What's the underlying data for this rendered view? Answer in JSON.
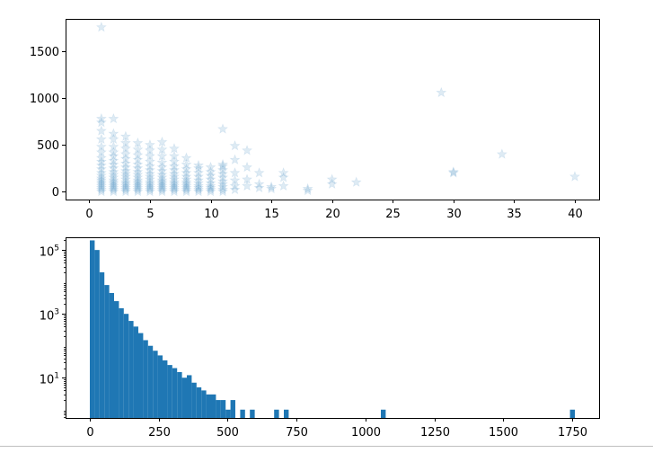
{
  "chart_data": [
    {
      "type": "scatter",
      "title": "",
      "xlabel": "",
      "ylabel": "",
      "xlim": [
        -1.95,
        42.0
      ],
      "ylim": [
        -85,
        1850
      ],
      "xticks": [
        0,
        5,
        10,
        15,
        20,
        25,
        30,
        35,
        40
      ],
      "yticks": [
        0,
        500,
        1000,
        1500
      ],
      "xtick_labels": [
        "0",
        "5",
        "10",
        "15",
        "20",
        "25",
        "30",
        "35",
        "40"
      ],
      "ytick_labels": [
        "0",
        "500",
        "1000",
        "1500"
      ],
      "marker": "star",
      "color": "#1f77b4",
      "alpha": 0.15,
      "grid": false,
      "series": [
        {
          "points": [
            [
              1,
              1760
            ],
            [
              1,
              780
            ],
            [
              1,
              740
            ],
            [
              1,
              650
            ],
            [
              1,
              560
            ],
            [
              1,
              480
            ],
            [
              1,
              420
            ],
            [
              1,
              360
            ],
            [
              1,
              320
            ],
            [
              1,
              280
            ],
            [
              1,
              240
            ],
            [
              1,
              200
            ],
            [
              1,
              170
            ],
            [
              1,
              140
            ],
            [
              1,
              120
            ],
            [
              1,
              100
            ],
            [
              1,
              80
            ],
            [
              1,
              60
            ],
            [
              1,
              40
            ],
            [
              1,
              20
            ],
            [
              1,
              0
            ],
            [
              2,
              780
            ],
            [
              2,
              620
            ],
            [
              2,
              560
            ],
            [
              2,
              480
            ],
            [
              2,
              420
            ],
            [
              2,
              380
            ],
            [
              2,
              330
            ],
            [
              2,
              290
            ],
            [
              2,
              250
            ],
            [
              2,
              210
            ],
            [
              2,
              180
            ],
            [
              2,
              150
            ],
            [
              2,
              120
            ],
            [
              2,
              100
            ],
            [
              2,
              80
            ],
            [
              2,
              60
            ],
            [
              2,
              40
            ],
            [
              2,
              20
            ],
            [
              2,
              0
            ],
            [
              3,
              590
            ],
            [
              3,
              520
            ],
            [
              3,
              460
            ],
            [
              3,
              400
            ],
            [
              3,
              350
            ],
            [
              3,
              300
            ],
            [
              3,
              260
            ],
            [
              3,
              220
            ],
            [
              3,
              190
            ],
            [
              3,
              160
            ],
            [
              3,
              130
            ],
            [
              3,
              100
            ],
            [
              3,
              80
            ],
            [
              3,
              60
            ],
            [
              3,
              40
            ],
            [
              3,
              20
            ],
            [
              3,
              0
            ],
            [
              4,
              520
            ],
            [
              4,
              450
            ],
            [
              4,
              390
            ],
            [
              4,
              340
            ],
            [
              4,
              290
            ],
            [
              4,
              250
            ],
            [
              4,
              210
            ],
            [
              4,
              180
            ],
            [
              4,
              150
            ],
            [
              4,
              120
            ],
            [
              4,
              100
            ],
            [
              4,
              80
            ],
            [
              4,
              60
            ],
            [
              4,
              40
            ],
            [
              4,
              20
            ],
            [
              4,
              0
            ],
            [
              5,
              500
            ],
            [
              5,
              440
            ],
            [
              5,
              380
            ],
            [
              5,
              320
            ],
            [
              5,
              270
            ],
            [
              5,
              230
            ],
            [
              5,
              190
            ],
            [
              5,
              160
            ],
            [
              5,
              130
            ],
            [
              5,
              100
            ],
            [
              5,
              80
            ],
            [
              5,
              60
            ],
            [
              5,
              40
            ],
            [
              5,
              20
            ],
            [
              5,
              0
            ],
            [
              6,
              530
            ],
            [
              6,
              450
            ],
            [
              6,
              380
            ],
            [
              6,
              310
            ],
            [
              6,
              260
            ],
            [
              6,
              220
            ],
            [
              6,
              180
            ],
            [
              6,
              150
            ],
            [
              6,
              120
            ],
            [
              6,
              100
            ],
            [
              6,
              80
            ],
            [
              6,
              60
            ],
            [
              6,
              40
            ],
            [
              6,
              20
            ],
            [
              6,
              0
            ],
            [
              7,
              460
            ],
            [
              7,
              380
            ],
            [
              7,
              320
            ],
            [
              7,
              270
            ],
            [
              7,
              230
            ],
            [
              7,
              190
            ],
            [
              7,
              160
            ],
            [
              7,
              130
            ],
            [
              7,
              100
            ],
            [
              7,
              80
            ],
            [
              7,
              60
            ],
            [
              7,
              40
            ],
            [
              7,
              20
            ],
            [
              7,
              0
            ],
            [
              8,
              360
            ],
            [
              8,
              290
            ],
            [
              8,
              240
            ],
            [
              8,
              200
            ],
            [
              8,
              160
            ],
            [
              8,
              130
            ],
            [
              8,
              100
            ],
            [
              8,
              80
            ],
            [
              8,
              60
            ],
            [
              8,
              40
            ],
            [
              8,
              20
            ],
            [
              8,
              0
            ],
            [
              9,
              280
            ],
            [
              9,
              250
            ],
            [
              9,
              200
            ],
            [
              9,
              160
            ],
            [
              9,
              120
            ],
            [
              9,
              90
            ],
            [
              9,
              60
            ],
            [
              9,
              40
            ],
            [
              9,
              20
            ],
            [
              9,
              0
            ],
            [
              10,
              260
            ],
            [
              10,
              210
            ],
            [
              10,
              170
            ],
            [
              10,
              130
            ],
            [
              10,
              90
            ],
            [
              10,
              60
            ],
            [
              10,
              40
            ],
            [
              10,
              20
            ],
            [
              10,
              0
            ],
            [
              11,
              670
            ],
            [
              11,
              290
            ],
            [
              11,
              270
            ],
            [
              11,
              230
            ],
            [
              11,
              190
            ],
            [
              11,
              150
            ],
            [
              11,
              110
            ],
            [
              11,
              80
            ],
            [
              11,
              50
            ],
            [
              11,
              20
            ],
            [
              11,
              0
            ],
            [
              12,
              490
            ],
            [
              12,
              340
            ],
            [
              12,
              200
            ],
            [
              12,
              120
            ],
            [
              12,
              60
            ],
            [
              12,
              20
            ],
            [
              13,
              440
            ],
            [
              13,
              260
            ],
            [
              13,
              130
            ],
            [
              13,
              60
            ],
            [
              14,
              200
            ],
            [
              14,
              80
            ],
            [
              14,
              40
            ],
            [
              15,
              50
            ],
            [
              15,
              30
            ],
            [
              16,
              200
            ],
            [
              16,
              150
            ],
            [
              16,
              60
            ],
            [
              18,
              30
            ],
            [
              18,
              10
            ],
            [
              20,
              130
            ],
            [
              20,
              80
            ],
            [
              22,
              100
            ],
            [
              29,
              1060
            ],
            [
              30,
              210
            ],
            [
              30,
              200
            ],
            [
              34,
              400
            ],
            [
              40,
              160
            ]
          ]
        }
      ]
    },
    {
      "type": "bar",
      "subtype": "histogram",
      "title": "",
      "xlabel": "",
      "ylabel": "",
      "xlim": [
        -88,
        1848
      ],
      "yscale": "log",
      "ylim": [
        0.55,
        250000
      ],
      "xticks": [
        0,
        250,
        500,
        750,
        1000,
        1250,
        1500,
        1750
      ],
      "xtick_labels": [
        "0",
        "250",
        "500",
        "750",
        "1000",
        "1250",
        "1500",
        "1750"
      ],
      "yticks": [
        10,
        1000,
        100000
      ],
      "ytick_labels": [
        {
          "base": "10",
          "exp": "1"
        },
        {
          "base": "10",
          "exp": "3"
        },
        {
          "base": "10",
          "exp": "5"
        }
      ],
      "color": "#1f77b4",
      "bin_width": 17.6,
      "bin_start": 0,
      "values": [
        200000,
        100000,
        20000,
        8000,
        4500,
        2500,
        1500,
        1000,
        600,
        400,
        250,
        150,
        100,
        70,
        50,
        35,
        25,
        20,
        15,
        10,
        12,
        7,
        5,
        4,
        3,
        3,
        2,
        2,
        1,
        2,
        0,
        1,
        0,
        1,
        0,
        0,
        0,
        0,
        1,
        0,
        1,
        0,
        0,
        0,
        0,
        0,
        0,
        0,
        0,
        0,
        0,
        0,
        0,
        0,
        0,
        0,
        0,
        0,
        0,
        0,
        1,
        0,
        0,
        0,
        0,
        0,
        0,
        0,
        0,
        0,
        0,
        0,
        0,
        0,
        0,
        0,
        0,
        0,
        0,
        0,
        0,
        0,
        0,
        0,
        0,
        0,
        0,
        0,
        0,
        0,
        0,
        0,
        0,
        0,
        0,
        0,
        0,
        0,
        0,
        1
      ]
    }
  ]
}
